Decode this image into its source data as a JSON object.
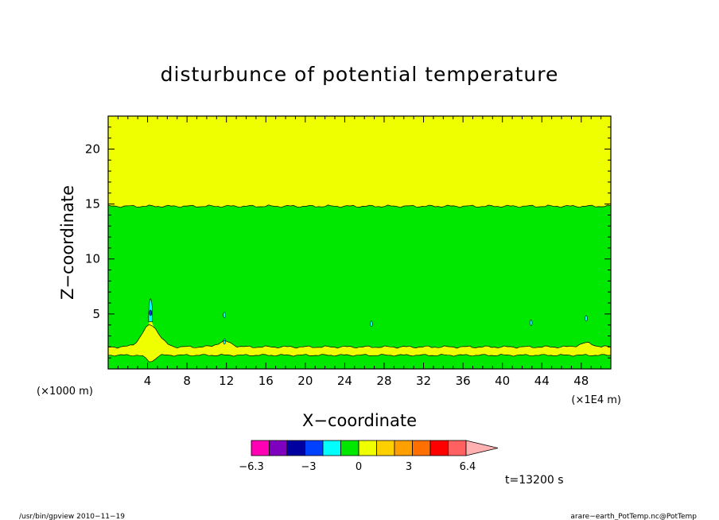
{
  "chart_data": {
    "type": "heatmap",
    "title": "disturbunce of potential temperature",
    "xlabel": "X−coordinate",
    "ylabel": "Z−coordinate",
    "x_unit_left": "(×1000 m)",
    "x_unit_right": "(×1E4 m)",
    "xlim": [
      0,
      51
    ],
    "ylim": [
      0,
      23
    ],
    "x_ticks": [
      4,
      8,
      12,
      16,
      20,
      24,
      28,
      32,
      36,
      40,
      44,
      48
    ],
    "y_ticks": [
      5,
      10,
      15,
      20
    ],
    "regions": [
      {
        "level": "0 to 0.5",
        "color": "#f0ff00",
        "z_range": [
          14.8,
          23
        ]
      },
      {
        "level": "-0.5 to 0",
        "color": "#00e800",
        "z_range": [
          2.2,
          14.8
        ]
      },
      {
        "level": "0 to 0.5",
        "color": "#f0ff00",
        "z_range": [
          1.2,
          2.2
        ]
      },
      {
        "level": "-0.5 to 0",
        "color": "#00e800",
        "z_range": [
          0,
          1.2
        ]
      }
    ],
    "colorbar": {
      "colors": [
        "#ff00b4",
        "#8000c0",
        "#0000a0",
        "#0040ff",
        "#00ffff",
        "#00e800",
        "#f0ff00",
        "#ffd000",
        "#ffa000",
        "#ff7000",
        "#ff0000",
        "#ff6060",
        "#ffb0b0"
      ],
      "labels": [
        "−6.3",
        "−3",
        "0",
        "3",
        "6.4"
      ]
    },
    "time_label": "t=13200 s"
  },
  "footer": {
    "left": "/usr/bin/gpview   2010−11−19",
    "right": "arare−earth_PotTemp.nc@PotTemp"
  }
}
